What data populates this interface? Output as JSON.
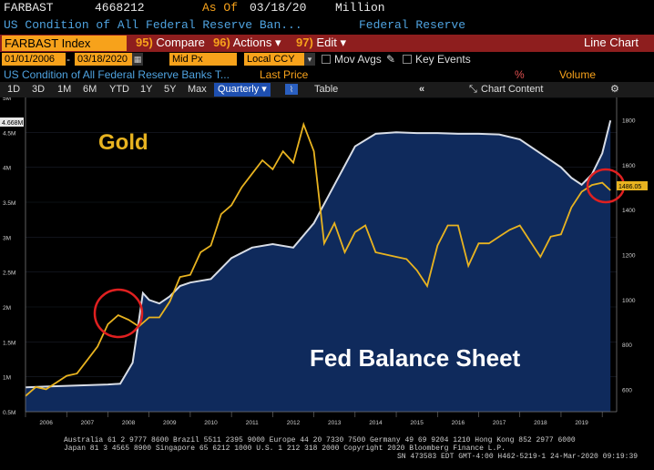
{
  "header": {
    "ticker": "FARBAST",
    "ticker_value": "4668212",
    "asof_label": "As Of",
    "asof_date": "03/18/20",
    "units": "Million",
    "description": "US Condition of All Federal Reserve Ban...",
    "source": "Federal Reserve"
  },
  "toolbar": {
    "index_label": "FARBAST Index",
    "compare": {
      "num": "95)",
      "label": "Compare"
    },
    "actions": {
      "num": "96)",
      "label": "Actions"
    },
    "edit": {
      "num": "97)",
      "label": "Edit"
    },
    "view": "Line Chart"
  },
  "settings": {
    "start_date": "01/01/2006",
    "end_date": "03/18/2020",
    "price_field": "Mid Px",
    "currency": "Local CCY",
    "mov_avgs": "Mov Avgs",
    "key_events": "Key Events"
  },
  "legend_row": {
    "series_desc": "US Condition of All Federal Reserve Banks T...",
    "last_price": "Last Price",
    "pct": "%",
    "volume": "Volume"
  },
  "periods": [
    "1D",
    "3D",
    "1M",
    "6M",
    "YTD",
    "1Y",
    "5Y",
    "Max"
  ],
  "frequency": "Quarterly",
  "table_label": "Table",
  "chart_content_label": "Chart Content",
  "colors": {
    "gold": "#e8b320",
    "fed_fill": "#0f2a5c",
    "fed_line": "#d8dde6",
    "circle": "#e02020",
    "toolbar_red": "#8e1e1e",
    "amber": "#f7a21b"
  },
  "chart_data": {
    "type": "line",
    "annotations": [
      "Gold",
      "Fed Balance Sheet"
    ],
    "x_years": [
      "2006",
      "2007",
      "2008",
      "2009",
      "2010",
      "2011",
      "2012",
      "2013",
      "2014",
      "2015",
      "2016",
      "2017",
      "2018",
      "2019",
      "2020"
    ],
    "left_axis": {
      "ticks": [
        "0.5M",
        "1M",
        "1.5M",
        "2M",
        "2.5M",
        "3M",
        "3.5M",
        "4M",
        "4.5M",
        "5M"
      ],
      "range": [
        0.5,
        5.0
      ]
    },
    "right_axis": {
      "ticks": [
        "600",
        "800",
        "1000",
        "1200",
        "1400",
        "1600",
        "1800"
      ],
      "range": [
        500,
        1900
      ]
    },
    "last_value_left": "4.668M",
    "last_value_right": "1486.05",
    "series": [
      {
        "name": "Fed Balance Sheet",
        "axis": "left",
        "style": "area",
        "x": [
          2006.0,
          2006.5,
          2007.0,
          2007.5,
          2008.0,
          2008.3,
          2008.6,
          2008.85,
          2009.0,
          2009.25,
          2009.5,
          2009.75,
          2010.0,
          2010.5,
          2011.0,
          2011.5,
          2012.0,
          2012.5,
          2013.0,
          2013.5,
          2014.0,
          2014.5,
          2015.0,
          2015.5,
          2016.0,
          2016.5,
          2017.0,
          2017.5,
          2018.0,
          2018.5,
          2019.0,
          2019.25,
          2019.5,
          2019.75,
          2020.0,
          2020.2
        ],
        "y": [
          0.85,
          0.86,
          0.87,
          0.88,
          0.89,
          0.9,
          1.2,
          2.2,
          2.1,
          2.05,
          2.15,
          2.3,
          2.35,
          2.4,
          2.7,
          2.85,
          2.9,
          2.85,
          3.2,
          3.75,
          4.3,
          4.48,
          4.5,
          4.49,
          4.49,
          4.48,
          4.48,
          4.47,
          4.4,
          4.2,
          4.0,
          3.85,
          3.75,
          3.9,
          4.2,
          4.67
        ]
      },
      {
        "name": "Gold",
        "axis": "right",
        "style": "line",
        "x": [
          2006.0,
          2006.25,
          2006.5,
          2006.75,
          2007.0,
          2007.25,
          2007.5,
          2007.75,
          2008.0,
          2008.25,
          2008.5,
          2008.75,
          2009.0,
          2009.25,
          2009.5,
          2009.75,
          2010.0,
          2010.25,
          2010.5,
          2010.75,
          2011.0,
          2011.25,
          2011.5,
          2011.75,
          2012.0,
          2012.25,
          2012.5,
          2012.75,
          2013.0,
          2013.25,
          2013.5,
          2013.75,
          2014.0,
          2014.25,
          2014.5,
          2014.75,
          2015.0,
          2015.25,
          2015.5,
          2015.75,
          2016.0,
          2016.25,
          2016.5,
          2016.75,
          2017.0,
          2017.25,
          2017.5,
          2017.75,
          2018.0,
          2018.25,
          2018.5,
          2018.75,
          2019.0,
          2019.25,
          2019.5,
          2019.75,
          2020.0,
          2020.2
        ],
        "y": [
          570,
          610,
          600,
          630,
          660,
          670,
          730,
          790,
          890,
          930,
          910,
          880,
          920,
          920,
          990,
          1100,
          1110,
          1210,
          1240,
          1380,
          1420,
          1500,
          1560,
          1620,
          1580,
          1660,
          1610,
          1780,
          1660,
          1250,
          1340,
          1210,
          1300,
          1330,
          1210,
          1200,
          1190,
          1180,
          1130,
          1060,
          1240,
          1330,
          1330,
          1150,
          1250,
          1250,
          1280,
          1310,
          1330,
          1260,
          1190,
          1280,
          1290,
          1410,
          1480,
          1510,
          1520,
          1486
        ]
      }
    ]
  },
  "footer": {
    "line1": "Australia 61 2 9777 8600 Brazil 5511 2395 9000 Europe 44 20 7330 7500 Germany 49 69 9204 1210 Hong Kong 852 2977 6000",
    "line2": "Japan 81 3 4565 8900        Singapore 65 6212 1000     U.S. 1 212 318 2000        Copyright 2020 Bloomberg Finance L.P.",
    "line3": "SN 473583 EDT  GMT-4:00 H462-5219-1 24-Mar-2020 09:19:39"
  }
}
